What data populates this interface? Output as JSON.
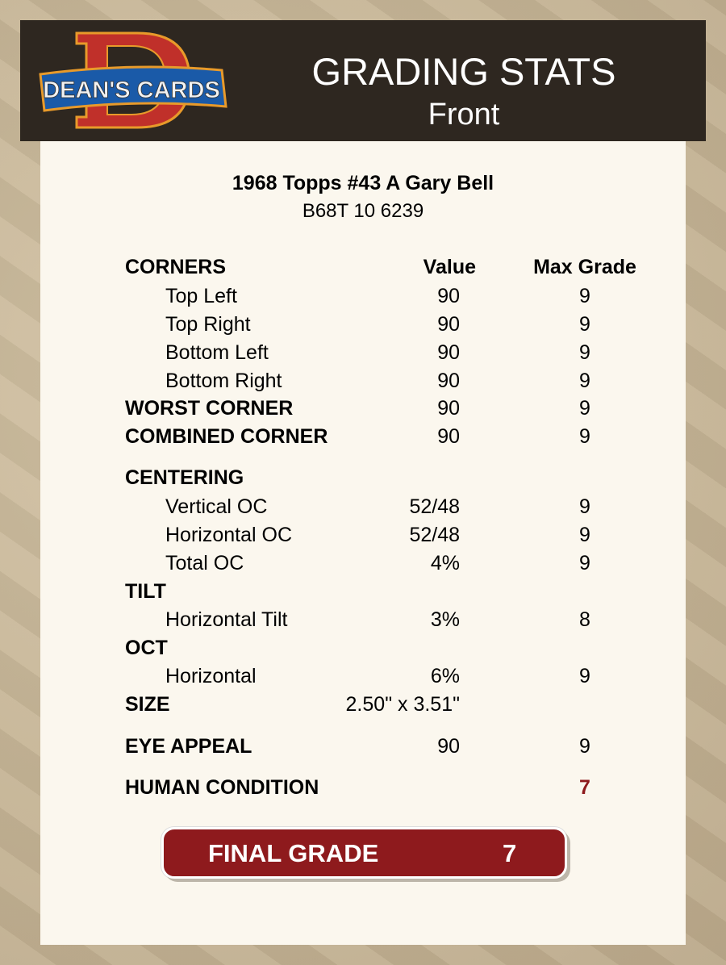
{
  "header": {
    "logo_text": "DEAN'S CARDS",
    "title": "GRADING STATS",
    "subtitle": "Front"
  },
  "card": {
    "name": "1968 Topps #43 A Gary Bell",
    "cert": "B68T 10 6239"
  },
  "columns": {
    "value": "Value",
    "max": "Max Grade"
  },
  "rows": [
    {
      "label": "CORNERS",
      "kind": "hdr",
      "value": "",
      "max": ""
    },
    {
      "label": "Top Left",
      "kind": "item",
      "value": "90",
      "max": "9"
    },
    {
      "label": "Top Right",
      "kind": "item",
      "value": "90",
      "max": "9"
    },
    {
      "label": "Bottom Left",
      "kind": "item",
      "value": "90",
      "max": "9"
    },
    {
      "label": "Bottom Right",
      "kind": "item",
      "value": "90",
      "max": "9"
    },
    {
      "label": "WORST CORNER",
      "kind": "hdr",
      "value": "90",
      "max": "9"
    },
    {
      "label": "COMBINED CORNER",
      "kind": "hdr",
      "value": "90",
      "max": "9"
    },
    {
      "label": "CENTERING",
      "kind": "hdr",
      "value": "",
      "max": ""
    },
    {
      "label": "Vertical OC",
      "kind": "item",
      "value": "52/48",
      "max": "9"
    },
    {
      "label": "Horizontal OC",
      "kind": "item",
      "value": "52/48",
      "max": "9"
    },
    {
      "label": "Total OC",
      "kind": "item",
      "value": "4%",
      "max": "9"
    },
    {
      "label": "TILT",
      "kind": "hdr",
      "value": "",
      "max": ""
    },
    {
      "label": "Horizontal Tilt",
      "kind": "item",
      "value": "3%",
      "max": "8"
    },
    {
      "label": "OCT",
      "kind": "hdr",
      "value": "",
      "max": ""
    },
    {
      "label": "Horizontal",
      "kind": "item",
      "value": "6%",
      "max": "9"
    },
    {
      "label": "SIZE",
      "kind": "hdr",
      "value": "2.50\" x 3.51\"",
      "max": ""
    },
    {
      "label": "EYE APPEAL",
      "kind": "hdr",
      "value": "90",
      "max": "9"
    },
    {
      "label": "HUMAN CONDITION",
      "kind": "hdr",
      "value": "",
      "max": "7",
      "highlight": true
    }
  ],
  "final": {
    "label": "FINAL GRADE",
    "value": "7"
  },
  "colors": {
    "header_bg": "#2e2720",
    "accent_red": "#8e1a1d",
    "card_bg": "#fbf7ee"
  }
}
